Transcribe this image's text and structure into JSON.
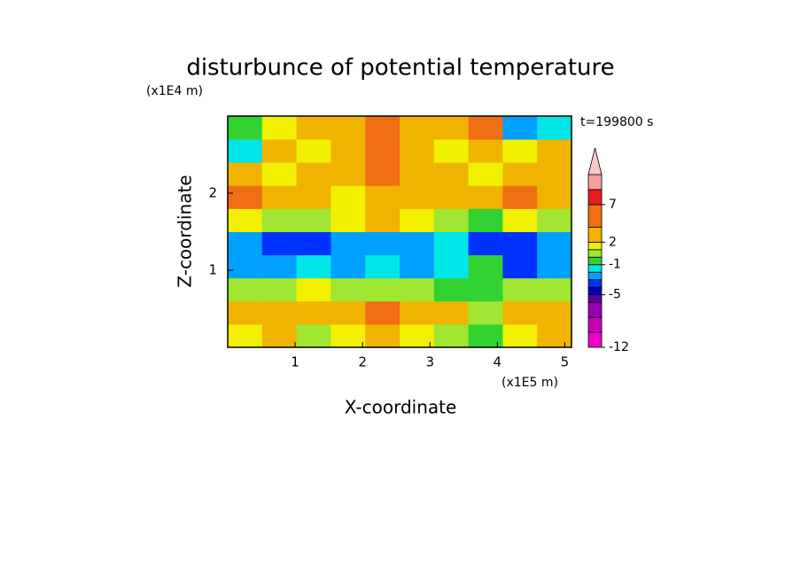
{
  "chart_data": {
    "type": "contour",
    "title": "disturbunce of potential temperature",
    "y_unit": "(x1E4 m)",
    "x_unit": "(x1E5 m)",
    "time_label": "t=199800 s",
    "xlabel": "X-coordinate",
    "ylabel": "Z-coordinate",
    "xlim": [
      0,
      5.1
    ],
    "ylim": [
      0,
      3
    ],
    "xticks": [
      1,
      2,
      3,
      4,
      5
    ],
    "yticks": [
      1,
      2
    ],
    "x": [
      0.255,
      0.765,
      1.275,
      1.785,
      2.295,
      2.805,
      3.315,
      3.825,
      4.335,
      4.845
    ],
    "y": [
      0.15,
      0.45,
      0.75,
      1.05,
      1.35,
      1.65,
      1.95,
      2.25,
      2.55,
      2.85
    ],
    "z": [
      [
        1,
        2,
        0,
        1,
        2,
        1,
        0,
        -1,
        1,
        2
      ],
      [
        2,
        3,
        2,
        3,
        4,
        3,
        2,
        0,
        3,
        2
      ],
      [
        0,
        0,
        1,
        0,
        0,
        0,
        -1,
        -1,
        0,
        0
      ],
      [
        -3,
        -3,
        -2,
        -3,
        -2,
        -3,
        -2,
        -1,
        -4,
        -3
      ],
      [
        -3,
        -4,
        -4,
        -3,
        -3,
        -3,
        -2,
        -4,
        -4,
        -3
      ],
      [
        1,
        0,
        0,
        1,
        2,
        1,
        0,
        -1,
        1,
        0
      ],
      [
        4,
        3,
        2,
        1,
        2,
        3,
        2,
        3,
        4,
        3
      ],
      [
        2,
        1,
        3,
        2,
        5,
        3,
        2,
        1,
        2,
        3
      ],
      [
        -2,
        2,
        1,
        2,
        5,
        3,
        1,
        2,
        1,
        2
      ],
      [
        -1,
        1,
        3,
        2,
        4,
        2,
        3,
        4,
        -3,
        -2
      ]
    ],
    "clim": [
      -12,
      11
    ],
    "cticks": [
      -12,
      -5,
      -1,
      2,
      7
    ],
    "levels": [
      -12,
      -10,
      -8,
      -6,
      -5,
      -4,
      -3,
      -2,
      -1,
      0,
      1,
      2,
      4,
      7,
      9,
      11
    ],
    "colors": [
      "#f000c8",
      "#c800b4",
      "#9600b4",
      "#5a00a0",
      "#0000b4",
      "#0032ff",
      "#00a0ff",
      "#00e6e6",
      "#32d232",
      "#a0e632",
      "#f0f000",
      "#f0b400",
      "#f06e14",
      "#e61e1e",
      "#f5a0a0"
    ],
    "extend_color": "#ffc8c8"
  }
}
